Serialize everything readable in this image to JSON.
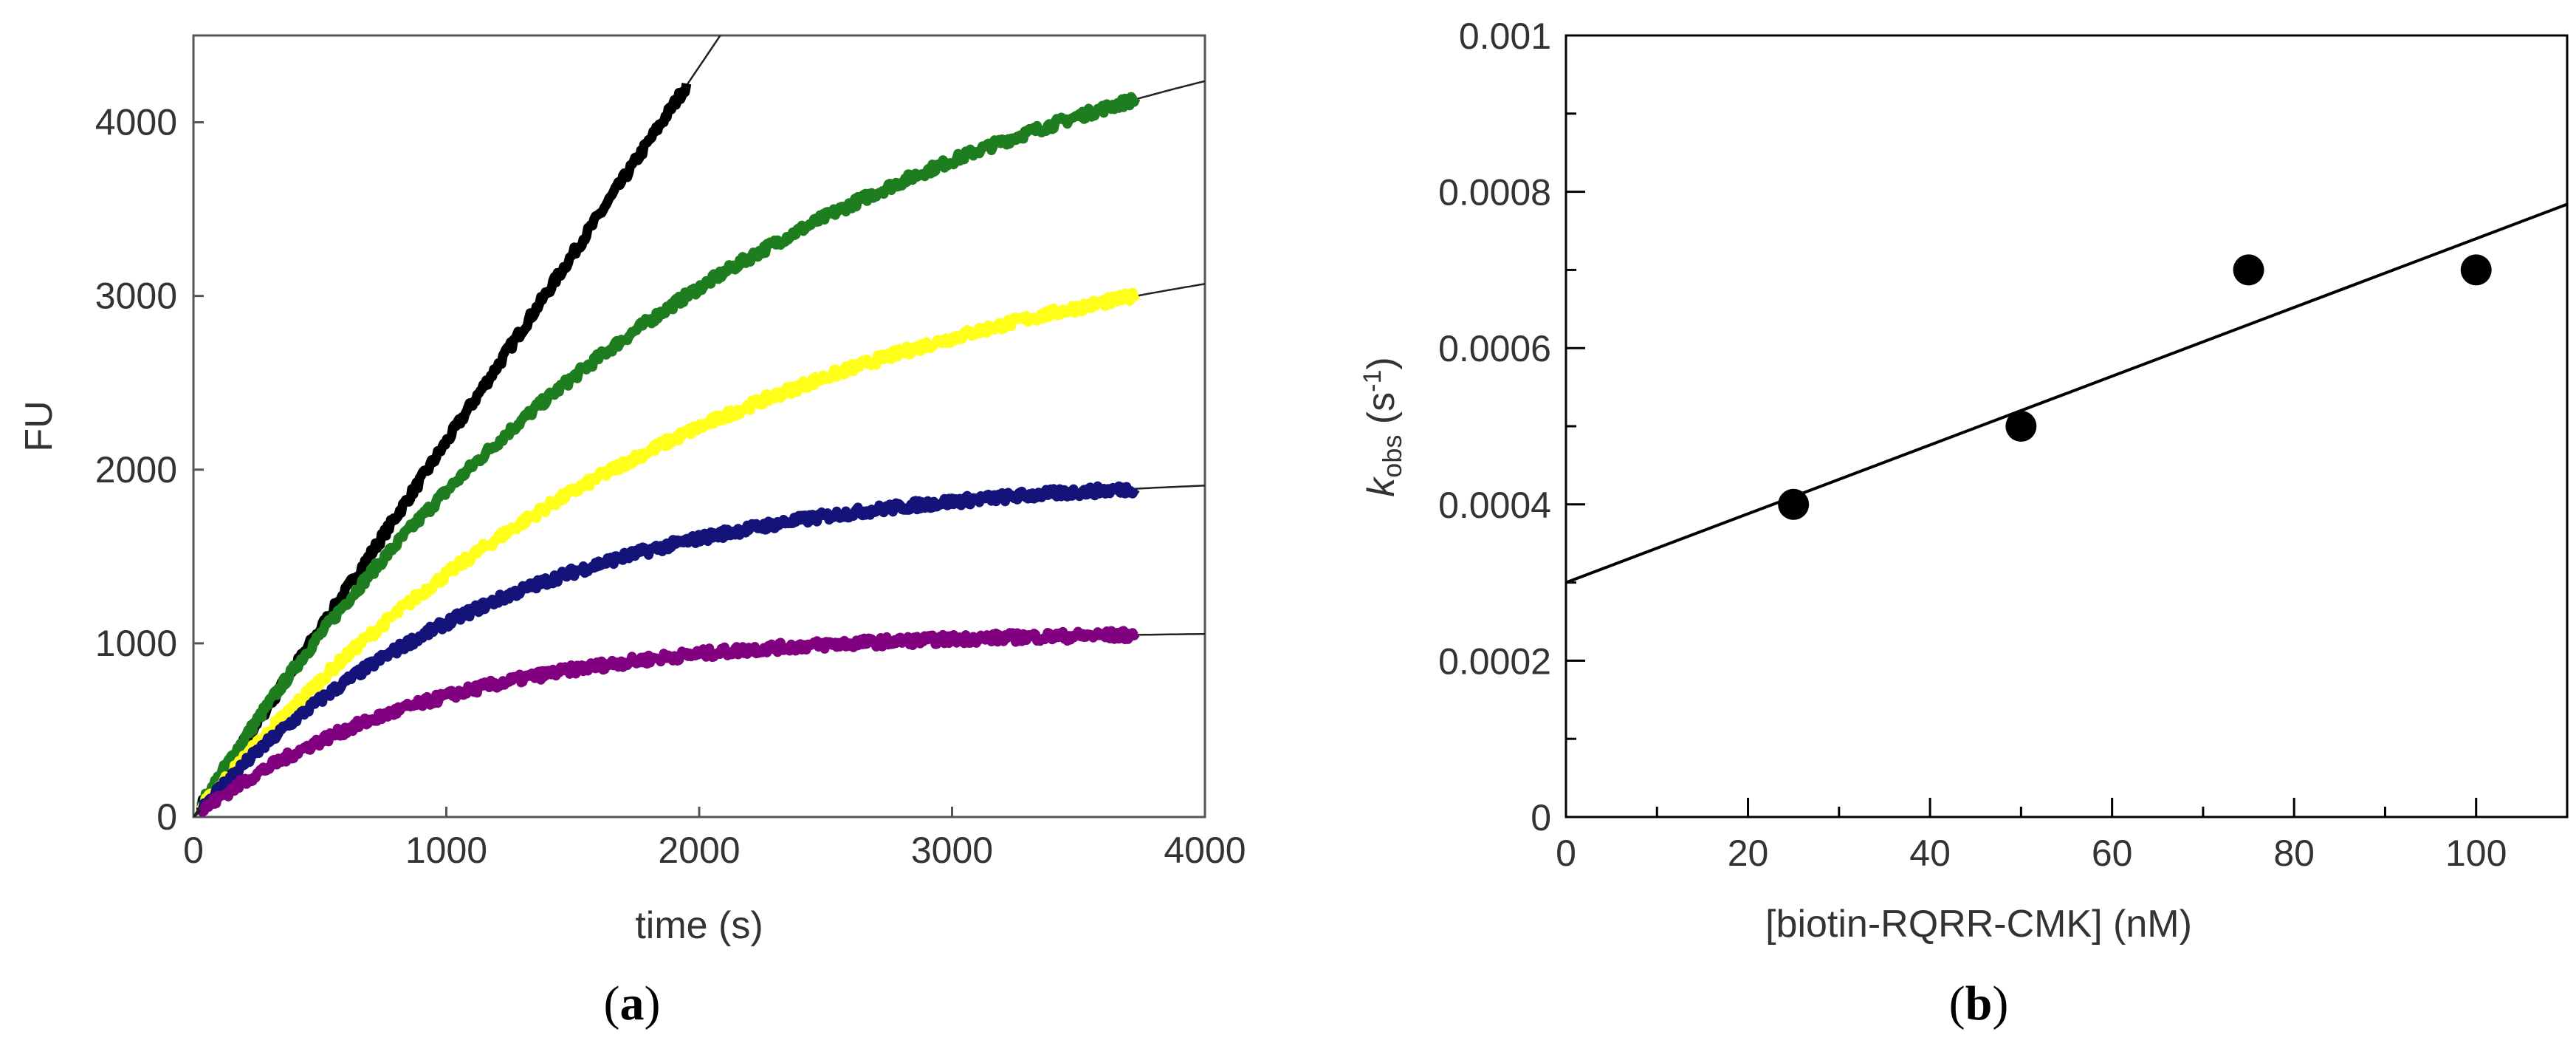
{
  "chart_data": [
    {
      "panel_label_prefix": "(",
      "panel_label_letter": "a",
      "panel_label_suffix": ")",
      "type": "line",
      "title": "",
      "xlabel": "time (s)",
      "ylabel": "FU",
      "xlim": [
        0,
        4000
      ],
      "ylim": [
        0,
        4500
      ],
      "xticks": [
        0,
        1000,
        2000,
        3000,
        4000
      ],
      "yticks": [
        0,
        1000,
        2000,
        3000,
        4000
      ],
      "xtick_labels": [
        "0",
        "1000",
        "2000",
        "3000",
        "4000"
      ],
      "ytick_labels": [
        "0",
        "1000",
        "2000",
        "3000",
        "4000"
      ],
      "grid": false,
      "series": [
        {
          "name": "black",
          "color": "#000000",
          "model": "linear",
          "slope": 2.16,
          "intercept": 0,
          "data_end": 1950,
          "fit_end": 2150
        },
        {
          "name": "green",
          "color": "#1e7d1e",
          "model": "exponential",
          "amplitude": 5000,
          "k": 0.00047,
          "data_end": 3730,
          "fit_end": 4000
        },
        {
          "name": "yellow",
          "color": "#ffff1a",
          "model": "exponential",
          "amplitude": 3550,
          "k": 0.0005,
          "data_end": 3730,
          "fit_end": 4000
        },
        {
          "name": "navy",
          "color": "#13137a",
          "model": "exponential",
          "amplitude": 1980,
          "k": 0.00083,
          "data_end": 3730,
          "fit_end": 4000
        },
        {
          "name": "purple",
          "color": "#800080",
          "model": "exponential",
          "amplitude": 1070,
          "k": 0.00105,
          "data_end": 3730,
          "fit_end": 4000
        }
      ]
    },
    {
      "panel_label_prefix": "(",
      "panel_label_letter": "b",
      "panel_label_suffix": ")",
      "type": "scatter",
      "title": "",
      "xlabel": "[biotin-RQRR-CMK] (nM)",
      "ylabel_main": "k",
      "ylabel_sub": "obs",
      "ylabel_unit_open": " (s",
      "ylabel_unit_sup": "-1",
      "ylabel_unit_close": ")",
      "xlim": [
        0,
        110
      ],
      "ylim": [
        0,
        0.001
      ],
      "xticks": [
        0,
        20,
        40,
        60,
        80,
        100
      ],
      "xtick_labels": [
        "0",
        "20",
        "40",
        "60",
        "80",
        "100"
      ],
      "yticks": [
        0,
        0.0002,
        0.0004,
        0.0006,
        0.0008,
        0.001
      ],
      "ytick_labels": [
        "0",
        "0.0002",
        "0.0004",
        "0.0006",
        "0.0008",
        "0.001"
      ],
      "grid": false,
      "points": {
        "x": [
          25,
          50,
          75,
          100
        ],
        "y": [
          0.0004,
          0.0005,
          0.0007,
          0.0007
        ]
      },
      "fit_line": {
        "intercept": 0.0003,
        "slope": 4.4e-06
      }
    }
  ]
}
